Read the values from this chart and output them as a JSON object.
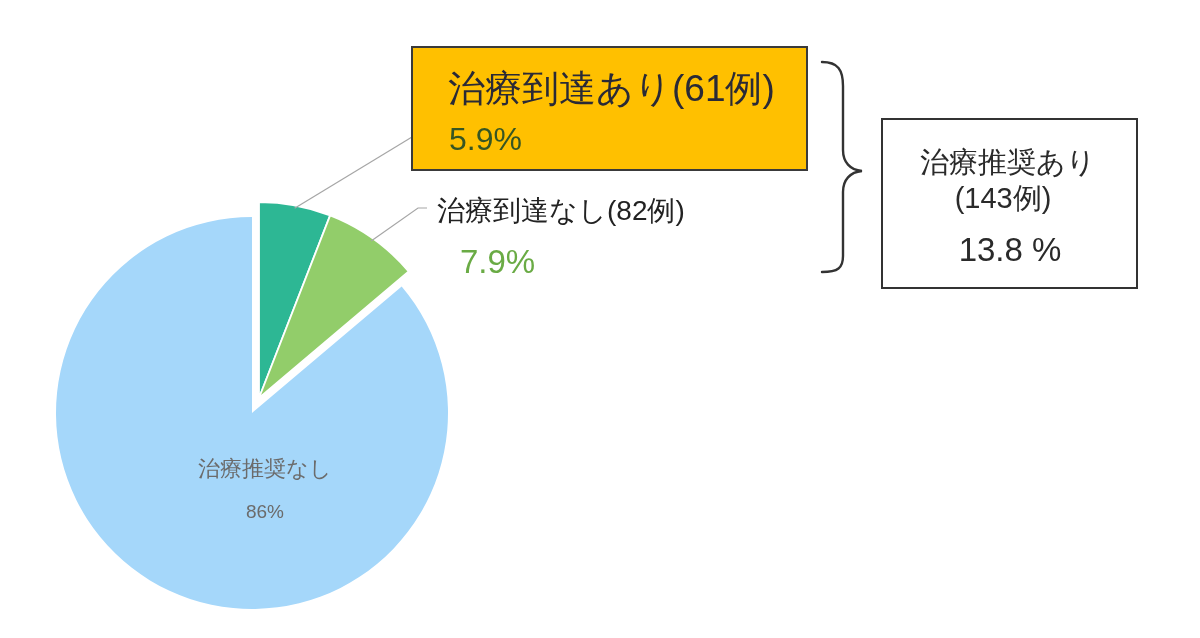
{
  "chart_data": {
    "type": "pie",
    "categories": [
      "治療到達あり(61例)",
      "治療到達なし(82例)",
      "治療推奨なし"
    ],
    "values": [
      5.9,
      7.9,
      86
    ],
    "colors": [
      "#2db794",
      "#92cd6a",
      "#a5d7fa"
    ],
    "value_labels": [
      "5.9%",
      "7.9%",
      "86%"
    ],
    "annotations": [
      "治療推奨あり",
      "(143例)",
      "13.8 %"
    ]
  }
}
